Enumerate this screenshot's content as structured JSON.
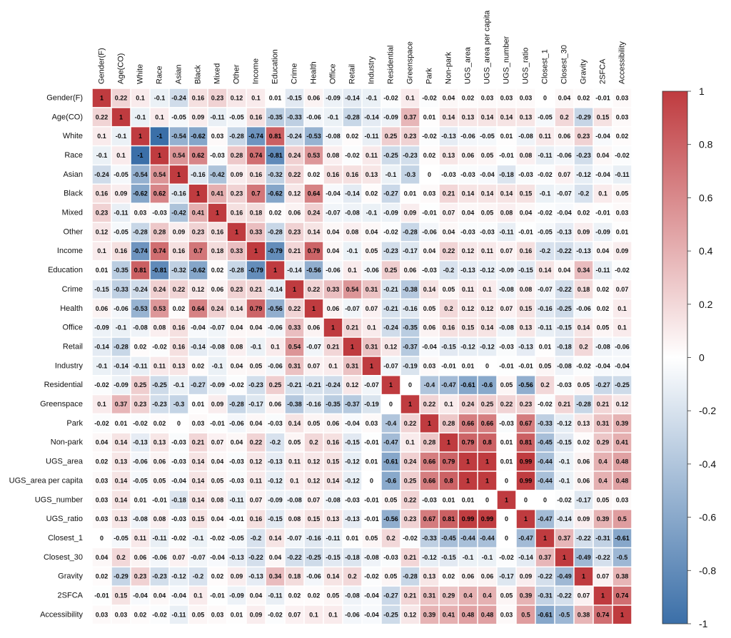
{
  "chart_data": {
    "type": "heatmap",
    "title": "",
    "xlabel": "",
    "ylabel": "",
    "variables": [
      "Gender(F)",
      "Age(CO)",
      "White",
      "Race",
      "Asian",
      "Black",
      "Mixed",
      "Other",
      "Income",
      "Education",
      "Crime",
      "Health",
      "Office",
      "Retail",
      "Industry",
      "Residential",
      "Greenspace",
      "Park",
      "Non-park",
      "UGS_area",
      "UGS_area per capita",
      "UGS_number",
      "UGS_ratio",
      "Closest_1",
      "Closest_30",
      "Gravity",
      "2SFCA",
      "Accessibility"
    ],
    "matrix": [
      [
        1,
        0.22,
        0.1,
        -0.1,
        -0.24,
        0.16,
        0.23,
        0.12,
        0.1,
        0.01,
        -0.15,
        0.06,
        -0.09,
        -0.14,
        -0.1,
        -0.02,
        0.1,
        -0.02,
        0.04,
        0.02,
        0.03,
        0.03,
        0.03,
        0,
        0.04,
        0.02,
        -0.01,
        0.03
      ],
      [
        0.22,
        1,
        -0.1,
        0.1,
        -0.05,
        0.09,
        -0.11,
        -0.05,
        0.16,
        -0.35,
        -0.33,
        -0.06,
        -0.1,
        -0.28,
        -0.14,
        -0.09,
        0.37,
        0.01,
        0.14,
        0.13,
        0.14,
        0.14,
        0.13,
        -0.05,
        0.2,
        -0.29,
        0.15,
        0.03
      ],
      [
        0.1,
        -0.1,
        1,
        -1,
        -0.54,
        -0.62,
        0.03,
        -0.28,
        -0.74,
        0.81,
        -0.24,
        -0.53,
        -0.08,
        0.02,
        -0.11,
        0.25,
        0.23,
        -0.02,
        -0.13,
        -0.06,
        -0.05,
        0.01,
        -0.08,
        0.11,
        0.06,
        0.23,
        -0.04,
        0.02
      ],
      [
        -0.1,
        0.1,
        -1,
        1,
        0.54,
        0.62,
        -0.03,
        0.28,
        0.74,
        -0.81,
        0.24,
        0.53,
        0.08,
        -0.02,
        0.11,
        -0.25,
        -0.23,
        0.02,
        0.13,
        0.06,
        0.05,
        -0.01,
        0.08,
        -0.11,
        -0.06,
        -0.23,
        0.04,
        -0.02
      ],
      [
        -0.24,
        -0.05,
        -0.54,
        0.54,
        1,
        -0.16,
        -0.42,
        0.09,
        0.16,
        -0.32,
        0.22,
        0.02,
        0.16,
        0.16,
        0.13,
        -0.1,
        -0.3,
        0,
        -0.03,
        -0.03,
        -0.04,
        -0.18,
        -0.03,
        -0.02,
        0.07,
        -0.12,
        -0.04,
        -0.11
      ],
      [
        0.16,
        0.09,
        -0.62,
        0.62,
        -0.16,
        1,
        0.41,
        0.23,
        0.7,
        -0.62,
        0.12,
        0.64,
        -0.04,
        -0.14,
        0.02,
        -0.27,
        0.01,
        0.03,
        0.21,
        0.14,
        0.14,
        0.14,
        0.15,
        -0.1,
        -0.07,
        -0.2,
        0.1,
        0.05
      ],
      [
        0.23,
        -0.11,
        0.03,
        -0.03,
        -0.42,
        0.41,
        1,
        0.16,
        0.18,
        0.02,
        0.06,
        0.24,
        -0.07,
        -0.08,
        -0.1,
        -0.09,
        0.09,
        -0.01,
        0.07,
        0.04,
        0.05,
        0.08,
        0.04,
        -0.02,
        -0.04,
        0.02,
        -0.01,
        0.03
      ],
      [
        0.12,
        -0.05,
        -0.28,
        0.28,
        0.09,
        0.23,
        0.16,
        1,
        0.33,
        -0.28,
        0.23,
        0.14,
        0.04,
        0.08,
        0.04,
        -0.02,
        -0.28,
        -0.06,
        0.04,
        -0.03,
        -0.03,
        -0.11,
        -0.01,
        -0.05,
        -0.13,
        0.09,
        -0.09,
        0.01
      ],
      [
        0.1,
        0.16,
        -0.74,
        0.74,
        0.16,
        0.7,
        0.18,
        0.33,
        1,
        -0.79,
        0.21,
        0.79,
        0.04,
        -0.1,
        0.05,
        -0.23,
        -0.17,
        0.04,
        0.22,
        0.12,
        0.11,
        0.07,
        0.16,
        -0.2,
        -0.22,
        -0.13,
        0.04,
        0.09
      ],
      [
        0.01,
        -0.35,
        0.81,
        -0.81,
        -0.32,
        -0.62,
        0.02,
        -0.28,
        -0.79,
        1,
        -0.14,
        -0.56,
        -0.06,
        0.1,
        -0.06,
        0.25,
        0.06,
        -0.03,
        -0.2,
        -0.13,
        -0.12,
        -0.09,
        -0.15,
        0.14,
        0.04,
        0.34,
        -0.11,
        -0.02
      ],
      [
        -0.15,
        -0.33,
        -0.24,
        0.24,
        0.22,
        0.12,
        0.06,
        0.23,
        0.21,
        -0.14,
        1,
        0.22,
        0.33,
        0.54,
        0.31,
        -0.21,
        -0.38,
        0.14,
        0.05,
        0.11,
        0.1,
        -0.08,
        0.08,
        -0.07,
        -0.22,
        0.18,
        0.02,
        0.07
      ],
      [
        0.06,
        -0.06,
        -0.53,
        0.53,
        0.02,
        0.64,
        0.24,
        0.14,
        0.79,
        -0.56,
        0.22,
        1,
        0.06,
        -0.07,
        0.07,
        -0.21,
        -0.16,
        0.05,
        0.2,
        0.12,
        0.12,
        0.07,
        0.15,
        -0.16,
        -0.25,
        -0.06,
        0.02,
        0.1
      ],
      [
        -0.09,
        -0.1,
        -0.08,
        0.08,
        0.16,
        -0.04,
        -0.07,
        0.04,
        0.04,
        -0.06,
        0.33,
        0.06,
        1,
        0.21,
        0.1,
        -0.24,
        -0.35,
        0.06,
        0.16,
        0.15,
        0.14,
        -0.08,
        0.13,
        -0.11,
        -0.15,
        0.14,
        0.05,
        0.1
      ],
      [
        -0.14,
        -0.28,
        0.02,
        -0.02,
        0.16,
        -0.14,
        -0.08,
        0.08,
        -0.1,
        0.1,
        0.54,
        -0.07,
        0.21,
        1,
        0.31,
        0.12,
        -0.37,
        -0.04,
        -0.15,
        -0.12,
        -0.12,
        -0.03,
        -0.13,
        0.01,
        -0.18,
        0.2,
        -0.08,
        -0.06
      ],
      [
        -0.1,
        -0.14,
        -0.11,
        0.11,
        0.13,
        0.02,
        -0.1,
        0.04,
        0.05,
        -0.06,
        0.31,
        0.07,
        0.1,
        0.31,
        1,
        -0.07,
        -0.19,
        0.03,
        -0.01,
        0.01,
        0,
        -0.01,
        -0.01,
        0.05,
        -0.08,
        -0.02,
        -0.04,
        -0.04
      ],
      [
        -0.02,
        -0.09,
        0.25,
        -0.25,
        -0.1,
        -0.27,
        -0.09,
        -0.02,
        -0.23,
        0.25,
        -0.21,
        -0.21,
        -0.24,
        0.12,
        -0.07,
        1,
        0,
        -0.4,
        -0.47,
        -0.61,
        -0.6,
        0.05,
        -0.56,
        0.2,
        -0.03,
        0.05,
        -0.27,
        -0.25
      ],
      [
        0.1,
        0.37,
        0.23,
        -0.23,
        -0.3,
        0.01,
        0.09,
        -0.28,
        -0.17,
        0.06,
        -0.38,
        -0.16,
        -0.35,
        -0.37,
        -0.19,
        0,
        1,
        0.22,
        0.1,
        0.24,
        0.25,
        0.22,
        0.23,
        -0.02,
        0.21,
        -0.28,
        0.21,
        0.12
      ],
      [
        -0.02,
        0.01,
        -0.02,
        0.02,
        0,
        0.03,
        -0.01,
        -0.06,
        0.04,
        -0.03,
        0.14,
        0.05,
        0.06,
        -0.04,
        0.03,
        -0.4,
        0.22,
        1,
        0.28,
        0.66,
        0.66,
        -0.03,
        0.67,
        -0.33,
        -0.12,
        0.13,
        0.31,
        0.39
      ],
      [
        0.04,
        0.14,
        -0.13,
        0.13,
        -0.03,
        0.21,
        0.07,
        0.04,
        0.22,
        -0.2,
        0.05,
        0.2,
        0.16,
        -0.15,
        -0.01,
        -0.47,
        0.1,
        0.28,
        1,
        0.79,
        0.8,
        0.01,
        0.81,
        -0.45,
        -0.15,
        0.02,
        0.29,
        0.41
      ],
      [
        0.02,
        0.13,
        -0.06,
        0.06,
        -0.03,
        0.14,
        0.04,
        -0.03,
        0.12,
        -0.13,
        0.11,
        0.12,
        0.15,
        -0.12,
        0.01,
        -0.61,
        0.24,
        0.66,
        0.79,
        1,
        1,
        0.01,
        0.99,
        -0.44,
        -0.1,
        0.06,
        0.4,
        0.48
      ],
      [
        0.03,
        0.14,
        -0.05,
        0.05,
        -0.04,
        0.14,
        0.05,
        -0.03,
        0.11,
        -0.12,
        0.1,
        0.12,
        0.14,
        -0.12,
        0,
        -0.6,
        0.25,
        0.66,
        0.8,
        1,
        1,
        0,
        0.99,
        -0.44,
        -0.1,
        0.06,
        0.4,
        0.48
      ],
      [
        0.03,
        0.14,
        0.01,
        -0.01,
        -0.18,
        0.14,
        0.08,
        -0.11,
        0.07,
        -0.09,
        -0.08,
        0.07,
        -0.08,
        -0.03,
        -0.01,
        0.05,
        0.22,
        -0.03,
        0.01,
        0.01,
        0,
        1,
        0,
        0,
        -0.02,
        -0.17,
        0.05,
        0.03
      ],
      [
        0.03,
        0.13,
        -0.08,
        0.08,
        -0.03,
        0.15,
        0.04,
        -0.01,
        0.16,
        -0.15,
        0.08,
        0.15,
        0.13,
        -0.13,
        -0.01,
        -0.56,
        0.23,
        0.67,
        0.81,
        0.99,
        0.99,
        0,
        1,
        -0.47,
        -0.14,
        0.09,
        0.39,
        0.5
      ],
      [
        0,
        -0.05,
        0.11,
        -0.11,
        -0.02,
        -0.1,
        -0.02,
        -0.05,
        -0.2,
        0.14,
        -0.07,
        -0.16,
        -0.11,
        0.01,
        0.05,
        0.2,
        -0.02,
        -0.33,
        -0.45,
        -0.44,
        -0.44,
        0,
        -0.47,
        1,
        0.37,
        -0.22,
        -0.31,
        -0.61
      ],
      [
        0.04,
        0.2,
        0.06,
        -0.06,
        0.07,
        -0.07,
        -0.04,
        -0.13,
        -0.22,
        0.04,
        -0.22,
        -0.25,
        -0.15,
        -0.18,
        -0.08,
        -0.03,
        0.21,
        -0.12,
        -0.15,
        -0.1,
        -0.1,
        -0.02,
        -0.14,
        0.37,
        1,
        -0.49,
        -0.22,
        -0.5
      ],
      [
        0.02,
        -0.29,
        0.23,
        -0.23,
        -0.12,
        -0.2,
        0.02,
        0.09,
        -0.13,
        0.34,
        0.18,
        -0.06,
        0.14,
        0.2,
        -0.02,
        0.05,
        -0.28,
        0.13,
        0.02,
        0.06,
        0.06,
        -0.17,
        0.09,
        -0.22,
        -0.49,
        1,
        0.07,
        0.38
      ],
      [
        -0.01,
        0.15,
        -0.04,
        0.04,
        -0.04,
        0.1,
        -0.01,
        -0.09,
        0.04,
        -0.11,
        0.02,
        0.02,
        0.05,
        -0.08,
        -0.04,
        -0.27,
        0.21,
        0.31,
        0.29,
        0.4,
        0.4,
        0.05,
        0.39,
        -0.31,
        -0.22,
        0.07,
        1,
        0.74
      ],
      [
        0.03,
        0.03,
        0.02,
        -0.02,
        -0.11,
        0.05,
        0.03,
        0.01,
        0.09,
        -0.02,
        0.07,
        0.1,
        0.1,
        -0.06,
        -0.04,
        -0.25,
        0.12,
        0.39,
        0.41,
        0.48,
        0.48,
        0.03,
        0.5,
        -0.61,
        -0.5,
        0.38,
        0.74,
        1
      ]
    ],
    "value_range": [
      -1,
      1
    ],
    "colorbar": {
      "ticks": [
        1,
        0.8,
        0.6,
        0.4,
        0.2,
        0,
        -0.2,
        -0.4,
        -0.6,
        -0.8,
        -1
      ],
      "tick_labels": [
        "1",
        "0.8",
        "0.6",
        "0.4",
        "0.2",
        "0",
        "-0.2",
        "-0.4",
        "-0.6",
        "-0.8",
        "-1"
      ],
      "low_color": "#3b6fa8",
      "mid_color": "#ffffff",
      "high_color": "#bf3b3f",
      "placement": "right"
    }
  }
}
